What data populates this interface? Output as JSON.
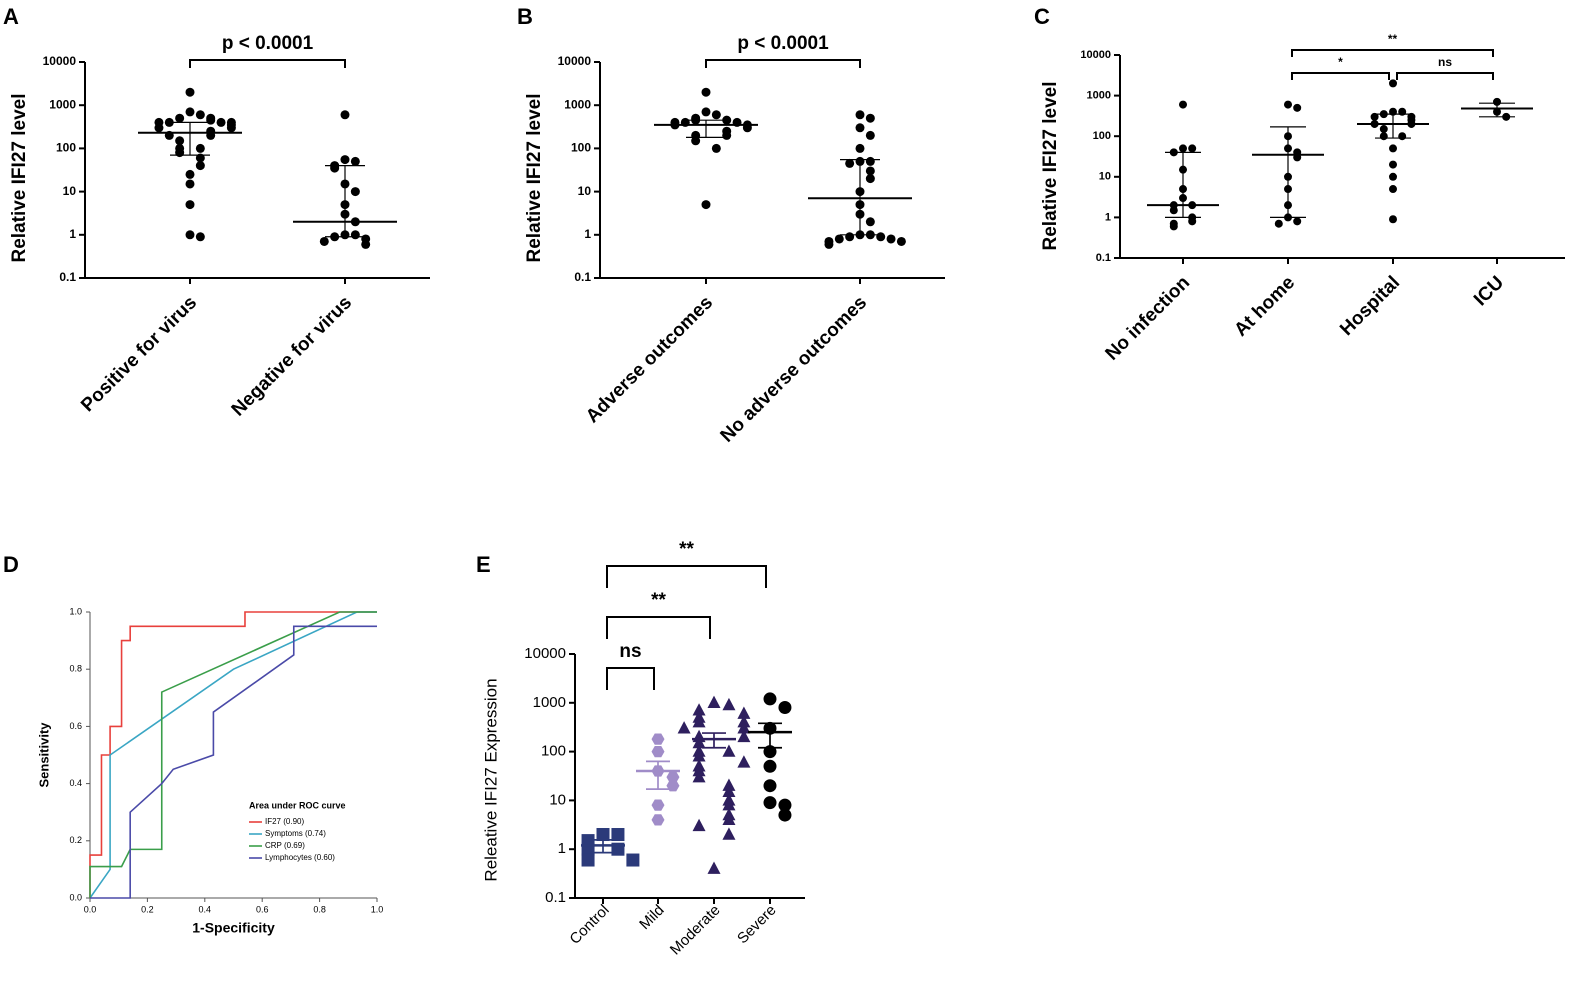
{
  "chart_data": [
    {
      "type": "dot",
      "panel": "A",
      "ylabel": "Relative IFI27 level",
      "log_y": true,
      "color": "#000000",
      "marker": "circle",
      "categories": [
        "Positive for virus",
        "Negative for virus"
      ],
      "values": [
        [
          2000,
          700,
          600,
          500,
          500,
          450,
          400,
          400,
          400,
          400,
          350,
          300,
          300,
          250,
          200,
          200,
          150,
          100,
          100,
          80,
          60,
          40,
          25,
          15,
          5,
          1,
          0.9
        ],
        [
          600,
          55,
          50,
          40,
          35,
          15,
          10,
          5,
          3,
          2,
          1,
          1,
          0.9,
          0.8,
          0.7,
          0.6
        ]
      ],
      "medians": [
        230,
        2
      ],
      "error_low": [
        70,
        0.9
      ],
      "error_high": [
        400,
        40
      ],
      "ylim": [
        0.1,
        10000
      ],
      "yticks": [
        0.1,
        1,
        10,
        100,
        1000,
        10000
      ],
      "annotations": [
        {
          "label": "p < 0.0001",
          "between": [
            "Positive for virus",
            "Negative for virus"
          ]
        }
      ]
    },
    {
      "type": "dot",
      "panel": "B",
      "ylabel": "Relative IFI27 level",
      "log_y": true,
      "color": "#000000",
      "marker": "circle",
      "categories": [
        "Adverse outcomes",
        "No adverse outcomes"
      ],
      "values": [
        [
          2000,
          700,
          600,
          500,
          450,
          450,
          400,
          400,
          400,
          350,
          350,
          300,
          250,
          200,
          200,
          150,
          100,
          5
        ],
        [
          600,
          500,
          300,
          200,
          100,
          50,
          50,
          45,
          30,
          20,
          10,
          5,
          3,
          2,
          1,
          1,
          0.9,
          0.9,
          0.8,
          0.8,
          0.7,
          0.7,
          0.6
        ]
      ],
      "medians": [
        350,
        7
      ],
      "error_low": [
        180,
        1
      ],
      "error_high": [
        450,
        55
      ],
      "ylim": [
        0.1,
        10000
      ],
      "yticks": [
        0.1,
        1,
        10,
        100,
        1000,
        10000
      ],
      "annotations": [
        {
          "label": "p < 0.0001",
          "between": [
            "Adverse outcomes",
            "No adverse outcomes"
          ]
        }
      ]
    },
    {
      "type": "dot",
      "panel": "C",
      "ylabel": "Relative IFI27 level",
      "log_y": true,
      "color": "#000000",
      "marker": "circle",
      "categories": [
        "No infection",
        "At home",
        "Hospital",
        "ICU"
      ],
      "values": [
        [
          600,
          50,
          50,
          40,
          15,
          5,
          3,
          2,
          2,
          1.5,
          1,
          0.8,
          0.7,
          0.6
        ],
        [
          600,
          500,
          100,
          50,
          40,
          30,
          10,
          5,
          2,
          1,
          0.8,
          0.7
        ],
        [
          2000,
          400,
          400,
          350,
          300,
          300,
          250,
          200,
          200,
          150,
          100,
          100,
          50,
          20,
          10,
          5,
          0.9
        ],
        [
          700,
          400,
          300
        ]
      ],
      "medians": [
        2,
        35,
        200,
        480
      ],
      "error_low": [
        1,
        1,
        90,
        300
      ],
      "error_high": [
        40,
        170,
        350,
        650
      ],
      "ylim": [
        0.1,
        10000
      ],
      "yticks": [
        0.1,
        1,
        10,
        100,
        1000,
        10000
      ],
      "annotations": [
        {
          "label": "**",
          "between": [
            "At home",
            "ICU"
          ]
        },
        {
          "label": "*",
          "between": [
            "At home",
            "Hospital"
          ]
        },
        {
          "label": "ns",
          "between": [
            "Hospital",
            "ICU"
          ]
        }
      ]
    },
    {
      "type": "line",
      "panel": "D",
      "xlabel": "1-Specificity",
      "ylabel": "Sensitivity",
      "legend_title": "Area under ROC curve",
      "xlim": [
        0,
        1
      ],
      "ylim": [
        0,
        1
      ],
      "xticks": [
        {
          "value": 0,
          "label": "0.0"
        },
        0.2,
        0.4,
        0.6,
        0.8,
        {
          "value": 1,
          "label": "1.0"
        }
      ],
      "yticks": [
        {
          "value": 0,
          "label": "0.0"
        },
        0.2,
        0.4,
        0.6,
        0.8,
        {
          "value": 1,
          "label": "1.0"
        }
      ],
      "series": [
        {
          "name": "IF27 (0.90)",
          "color": "#e8403c",
          "x": [
            0,
            0,
            0.04,
            0.04,
            0.07,
            0.07,
            0.11,
            0.11,
            0.14,
            0.14,
            0.54,
            0.54,
            1
          ],
          "values": [
            0,
            0.15,
            0.15,
            0.5,
            0.5,
            0.6,
            0.6,
            0.9,
            0.9,
            0.95,
            0.95,
            1,
            1
          ]
        },
        {
          "name": "Symptoms (0.74)",
          "color": "#3aa6c4",
          "x": [
            0,
            0.07,
            0.07,
            0.5,
            0.93,
            1
          ],
          "values": [
            0,
            0.1,
            0.5,
            0.8,
            1,
            1
          ]
        },
        {
          "name": "CRP (0.69)",
          "color": "#3a9e4a",
          "x": [
            0,
            0,
            0.11,
            0.14,
            0.25,
            0.25,
            0.87,
            1
          ],
          "values": [
            0,
            0.11,
            0.11,
            0.17,
            0.17,
            0.72,
            1,
            1
          ]
        },
        {
          "name": "Lymphocytes (0.60)",
          "color": "#4a4aa8",
          "x": [
            0,
            0.14,
            0.14,
            0.25,
            0.29,
            0.43,
            0.43,
            0.71,
            0.71,
            1
          ],
          "values": [
            0,
            0,
            0.3,
            0.4,
            0.45,
            0.5,
            0.65,
            0.85,
            0.95,
            0.95
          ]
        }
      ]
    },
    {
      "type": "dot",
      "panel": "E",
      "ylabel": "Releative IFI27 Expression",
      "log_y": true,
      "colors": [
        "#2b3a7a",
        "#a08cc8",
        "#2e1f5e",
        "#000000"
      ],
      "markers": [
        "square",
        "hexagon",
        "triangle",
        "circle"
      ],
      "categories": [
        "Control",
        "Mild",
        "Moderate",
        "Severe"
      ],
      "values": [
        [
          2,
          2,
          1.5,
          1,
          1,
          0.6,
          0.6
        ],
        [
          180,
          100,
          40,
          30,
          20,
          8,
          4
        ],
        [
          1000,
          900,
          700,
          600,
          500,
          400,
          400,
          300,
          300,
          200,
          200,
          150,
          100,
          100,
          80,
          60,
          50,
          40,
          30,
          20,
          15,
          10,
          8,
          5,
          4,
          3,
          2,
          0.4
        ],
        [
          1200,
          800,
          300,
          100,
          50,
          20,
          9,
          8,
          5
        ]
      ],
      "means": [
        1.2,
        40,
        180,
        250
      ],
      "sem": [
        0.35,
        23,
        60,
        130
      ],
      "ylim": [
        0.1,
        10000
      ],
      "yticks": [
        0.1,
        1,
        10,
        100,
        1000,
        10000
      ],
      "annotations": [
        {
          "label": "ns",
          "between": [
            "Control",
            "Mild"
          ]
        },
        {
          "label": "**",
          "between": [
            "Control",
            "Moderate"
          ]
        },
        {
          "label": "**",
          "between": [
            "Control",
            "Severe"
          ]
        }
      ]
    }
  ]
}
